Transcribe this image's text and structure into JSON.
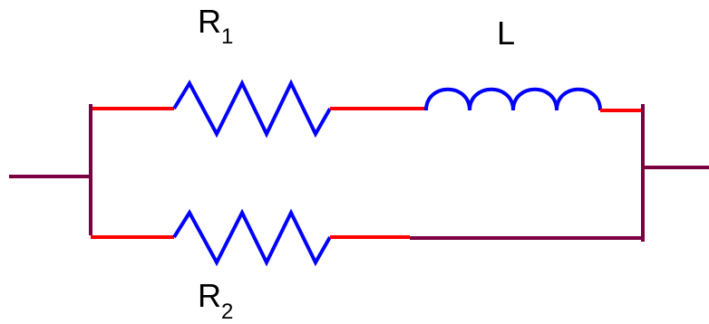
{
  "diagram": {
    "components": {
      "r1": {
        "symbol": "R",
        "subscript": "1"
      },
      "inductor": {
        "symbol": "L"
      },
      "r2": {
        "symbol": "R",
        "subscript": "2"
      }
    },
    "colors": {
      "wire_red": "#ff0000",
      "wire_dark": "#7a0040",
      "component_blue": "#0000ff",
      "label_black": "#000000"
    }
  }
}
